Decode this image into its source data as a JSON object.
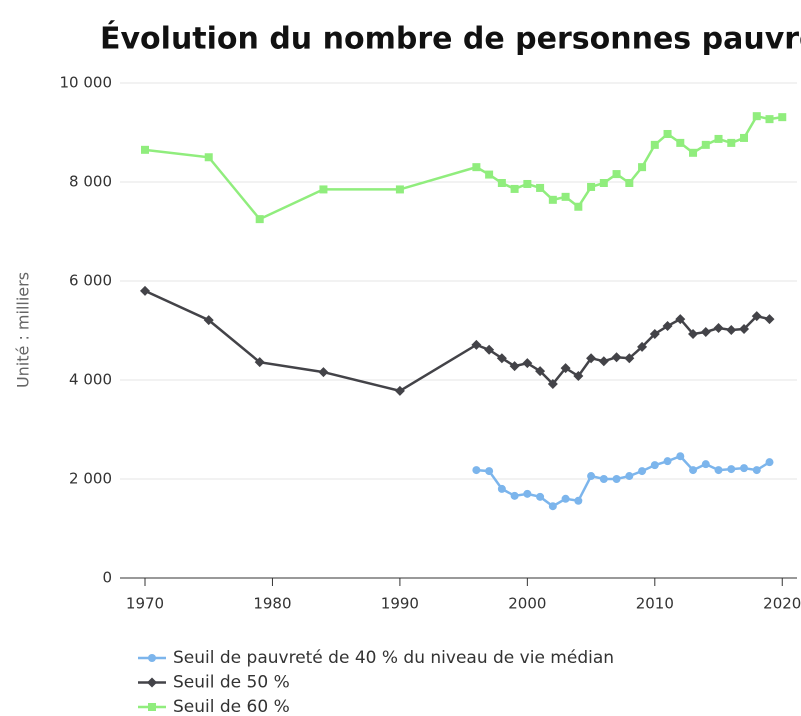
{
  "chart_data": {
    "type": "line",
    "title": "Évolution du nombre de personnes pauvres",
    "y_label": "Unité : milliers",
    "xlim": [
      1970,
      2021
    ],
    "xticks": [
      1970,
      1980,
      1990,
      2000,
      2010,
      2020
    ],
    "ylim": [
      0,
      10000
    ],
    "yticks": [
      0,
      {
        "value": 2000,
        "label": "2 000"
      },
      {
        "value": 4000,
        "label": "4 000"
      },
      {
        "value": 6000,
        "label": "6 000"
      },
      {
        "value": 8000,
        "label": "8 000"
      },
      {
        "value": 10000,
        "label": "10 000"
      }
    ],
    "grid": true,
    "legend": "bottom",
    "series": [
      {
        "name": "Seuil de pauvreté de 40 % du niveau de vie médian",
        "color": "#7cb5ec",
        "marker": "circle",
        "x": [
          1996,
          1997,
          1998,
          1999,
          2000,
          2001,
          2002,
          2003,
          2004,
          2005,
          2006,
          2007,
          2008,
          2009,
          2010,
          2011,
          2012,
          2013,
          2014,
          2015,
          2016,
          2017,
          2018,
          2019
        ],
        "values": [
          2180,
          2160,
          1800,
          1660,
          1700,
          1640,
          1450,
          1600,
          1560,
          2060,
          2000,
          2000,
          2060,
          2160,
          2280,
          2360,
          2460,
          2180,
          2300,
          2180,
          2200,
          2220,
          2180,
          2340
        ]
      },
      {
        "name": "Seuil de 50 %",
        "color": "#434348",
        "marker": "diamond",
        "x": [
          1970,
          1975,
          1979,
          1984,
          1990,
          1996,
          1997,
          1998,
          1999,
          2000,
          2001,
          2002,
          2003,
          2004,
          2005,
          2006,
          2007,
          2008,
          2009,
          2010,
          2011,
          2012,
          2013,
          2014,
          2015,
          2016,
          2017,
          2018,
          2019
        ],
        "values": [
          5800,
          5210,
          4360,
          4160,
          3780,
          4710,
          4610,
          4440,
          4280,
          4340,
          4180,
          3920,
          4240,
          4080,
          4440,
          4380,
          4460,
          4440,
          4670,
          4930,
          5090,
          5230,
          4930,
          4970,
          5050,
          5010,
          5030,
          5290,
          5230
        ]
      },
      {
        "name": "Seuil de 60 %",
        "color": "#90ed7d",
        "marker": "square",
        "x": [
          1970,
          1975,
          1979,
          1984,
          1990,
          1996,
          1997,
          1998,
          1999,
          2000,
          2001,
          2002,
          2003,
          2004,
          2005,
          2006,
          2007,
          2008,
          2009,
          2010,
          2011,
          2012,
          2013,
          2014,
          2015,
          2016,
          2017,
          2018,
          2019,
          2020
        ],
        "values": [
          8650,
          8500,
          7250,
          7850,
          7850,
          8300,
          8150,
          7980,
          7860,
          7960,
          7880,
          7640,
          7700,
          7500,
          7900,
          7980,
          8160,
          7980,
          8300,
          8750,
          8970,
          8790,
          8590,
          8750,
          8870,
          8790,
          8890,
          9330,
          9270,
          9310
        ]
      }
    ]
  }
}
